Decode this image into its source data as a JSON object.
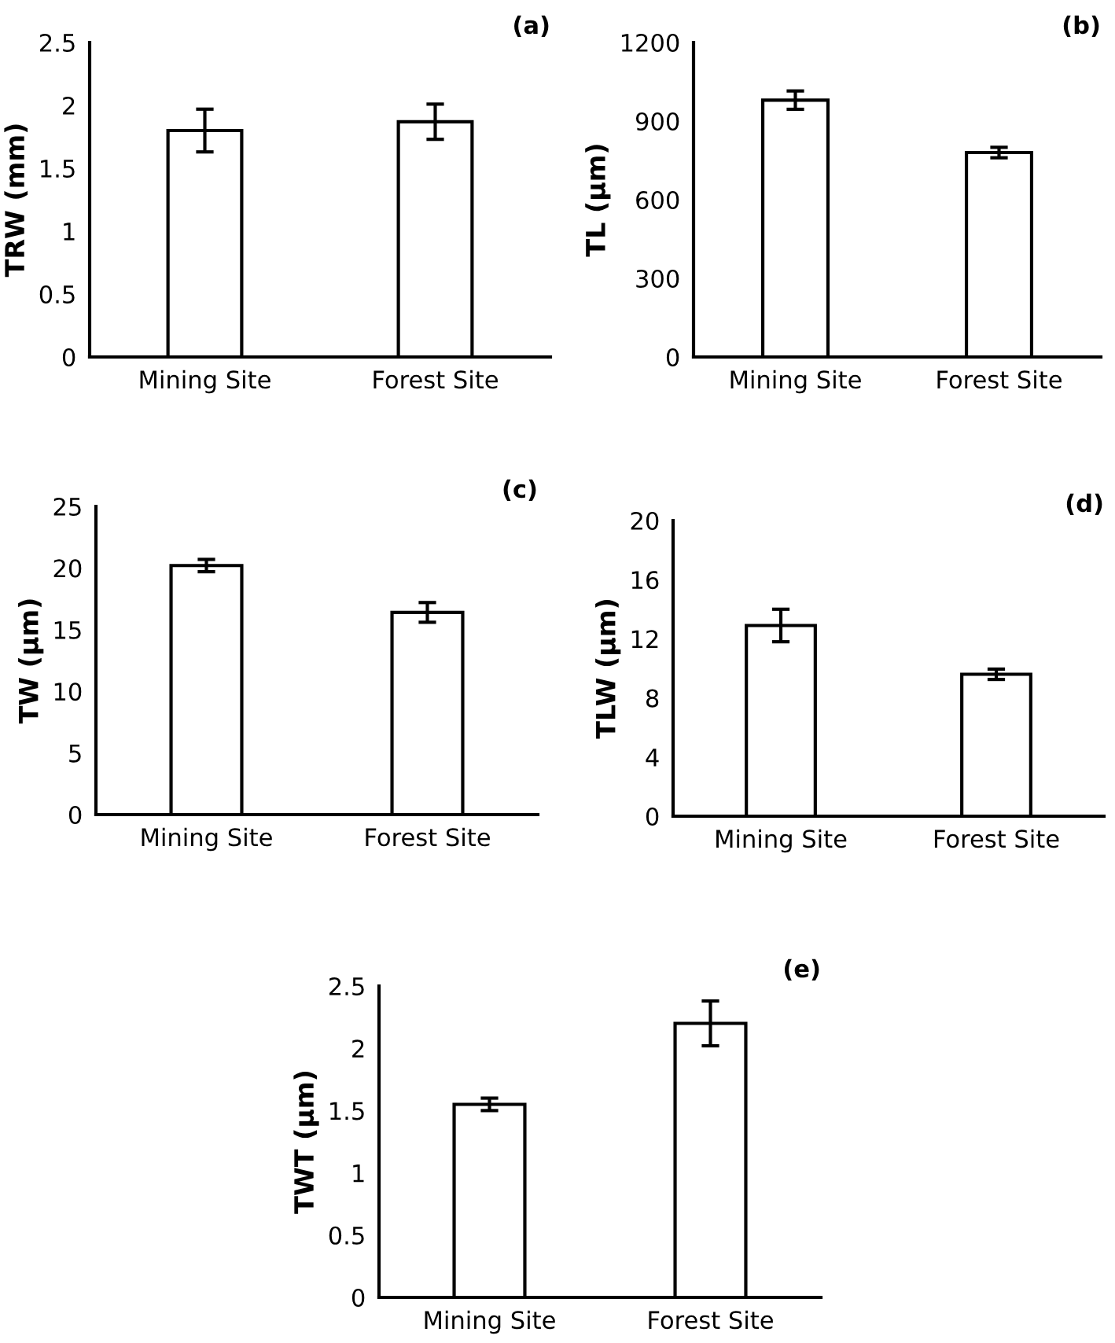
{
  "chart_data": [
    {
      "type": "bar",
      "title": "(a)",
      "ylabel": "TRW (mm)",
      "categories": [
        "Mining Site",
        "Forest Site"
      ],
      "values": [
        1.8,
        1.87
      ],
      "errors": [
        0.17,
        0.14
      ],
      "color": "#ffffff",
      "ylim": [
        0,
        2.5
      ],
      "yticks": [
        0,
        {
          "value": 0.5,
          "label": "0.5"
        },
        1,
        {
          "value": 1.5,
          "label": "1.5"
        },
        2,
        {
          "value": 2.5,
          "label": "2.5"
        }
      ],
      "grid": false
    },
    {
      "type": "bar",
      "title": "(b)",
      "ylabel": "TL (µm)",
      "categories": [
        "Mining Site",
        "Forest Site"
      ],
      "values": [
        980,
        780
      ],
      "errors": [
        35,
        20
      ],
      "color": "#ffffff",
      "ylim": [
        0,
        1200
      ],
      "yticks": [
        0,
        300,
        600,
        900,
        1200
      ],
      "grid": false
    },
    {
      "type": "bar",
      "title": "(c)",
      "ylabel": "TW (µm)",
      "categories": [
        "Mining Site",
        "Forest Site"
      ],
      "values": [
        20.2,
        16.4
      ],
      "errors": [
        0.5,
        0.8
      ],
      "color": "#ffffff",
      "ylim": [
        0,
        25
      ],
      "yticks": [
        0,
        5,
        10,
        15,
        20,
        25
      ],
      "grid": false
    },
    {
      "type": "bar",
      "title": "(d)",
      "ylabel": "TLW (µm)",
      "categories": [
        "Mining Site",
        "Forest Site"
      ],
      "values": [
        12.9,
        9.6
      ],
      "errors": [
        1.1,
        0.35
      ],
      "color": "#ffffff",
      "ylim": [
        0,
        20
      ],
      "yticks": [
        0,
        4,
        8,
        12,
        16,
        20
      ],
      "grid": false
    },
    {
      "type": "bar",
      "title": "(e)",
      "ylabel": "TWT (µm)",
      "categories": [
        "Mining Site",
        "Forest Site"
      ],
      "values": [
        1.55,
        2.2
      ],
      "errors": [
        0.05,
        0.18
      ],
      "color": "#ffffff",
      "ylim": [
        0,
        2.5
      ],
      "yticks": [
        0,
        {
          "value": 0.5,
          "label": "0.5"
        },
        1,
        {
          "value": 1.5,
          "label": "1.5"
        },
        2,
        {
          "value": 2.5,
          "label": "2.5"
        }
      ],
      "grid": false
    }
  ]
}
